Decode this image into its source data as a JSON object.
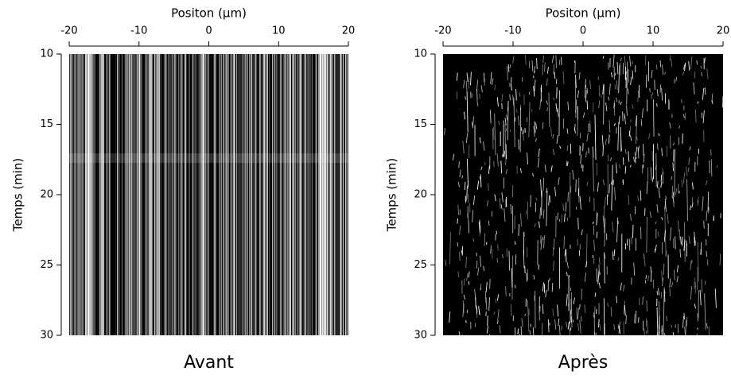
{
  "chart_data": [
    {
      "type": "image",
      "title": "Avant",
      "xlabel": "Positon (µm)",
      "ylabel": "Temps (min)",
      "xlim": [
        -20,
        20
      ],
      "xticks": [
        -20,
        -10,
        0,
        10,
        20
      ],
      "ylim": [
        30,
        10
      ],
      "yticks": [
        10,
        15,
        20,
        25,
        30
      ]
    },
    {
      "type": "image",
      "title": "Après",
      "xlabel": "Positon (µm)",
      "ylabel": "Temps (min)",
      "xlim": [
        -20,
        20
      ],
      "xticks": [
        -20,
        -10,
        0,
        10,
        20
      ],
      "ylim": [
        30,
        10
      ],
      "yticks": [
        10,
        15,
        20,
        25,
        30
      ]
    }
  ]
}
